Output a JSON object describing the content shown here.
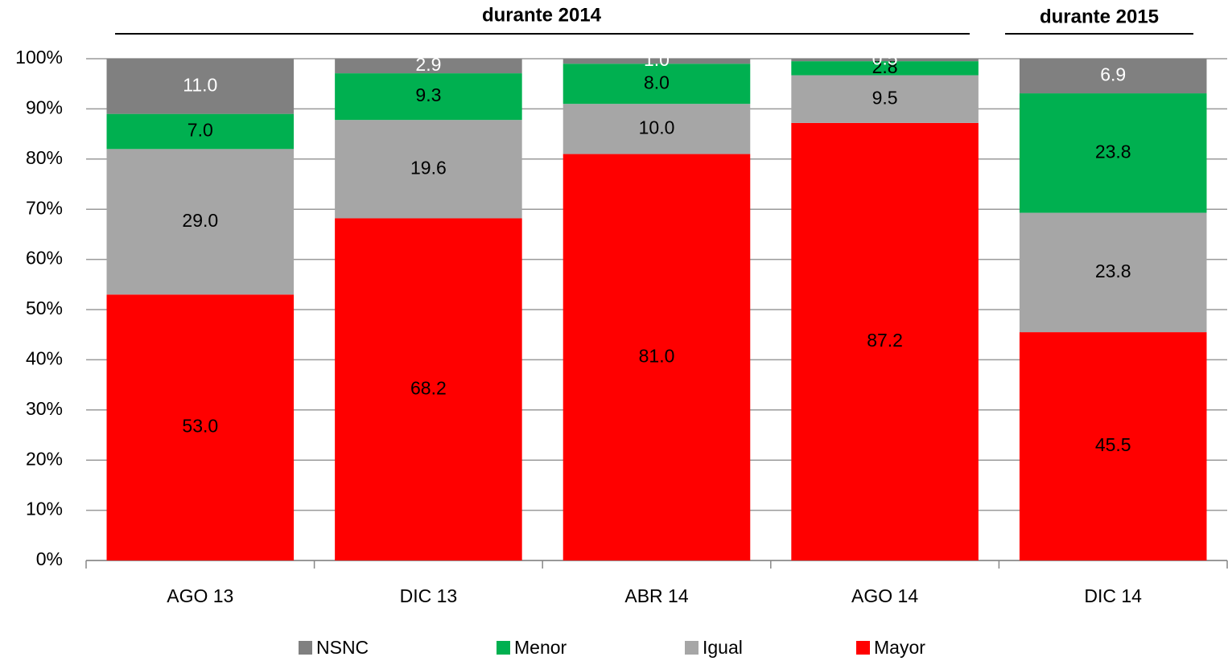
{
  "chart_data": {
    "type": "stacked_bar",
    "annotations": [
      "durante 2014",
      "durante 2015"
    ],
    "categories": [
      "AGO 13",
      "DIC 13",
      "ABR 14",
      "AGO 14",
      "DIC 14"
    ],
    "series": [
      {
        "name": "NSNC",
        "color": "#808080",
        "label_color": "#ffffff",
        "values": [
          11.0,
          2.9,
          1.0,
          0.5,
          6.9
        ],
        "value_labels": [
          "11.0",
          "2.9",
          "1.0",
          "0.5",
          "6.9"
        ]
      },
      {
        "name": "Menor",
        "color": "#00b050",
        "label_color": "#000000",
        "values": [
          7.0,
          9.3,
          8.0,
          2.8,
          23.8
        ],
        "value_labels": [
          "7.0",
          "9.3",
          "8.0",
          "2.8",
          "23.8"
        ]
      },
      {
        "name": "Igual",
        "color": "#a6a6a6",
        "label_color": "#000000",
        "values": [
          29.0,
          19.6,
          10.0,
          9.5,
          23.8
        ],
        "value_labels": [
          "29.0",
          "19.6",
          "10.0",
          "9.5",
          "23.8"
        ]
      },
      {
        "name": "Mayor",
        "color": "#ff0000",
        "label_color": "#000000",
        "values": [
          53.0,
          68.2,
          81.0,
          87.2,
          45.5
        ],
        "value_labels": [
          "53.0",
          "68.2",
          "81.0",
          "87.2",
          "45.5"
        ]
      }
    ],
    "ylim": [
      0,
      100
    ],
    "yticks": [
      {
        "value": 0,
        "label": "0%"
      },
      {
        "value": 10,
        "label": "10%"
      },
      {
        "value": 20,
        "label": "20%"
      },
      {
        "value": 30,
        "label": "30%"
      },
      {
        "value": 40,
        "label": "40%"
      },
      {
        "value": 50,
        "label": "50%"
      },
      {
        "value": 60,
        "label": "60%"
      },
      {
        "value": 70,
        "label": "70%"
      },
      {
        "value": 80,
        "label": "80%"
      },
      {
        "value": 90,
        "label": "90%"
      },
      {
        "value": 100,
        "label": "100%"
      }
    ],
    "grid": true,
    "legend": "bottom"
  }
}
